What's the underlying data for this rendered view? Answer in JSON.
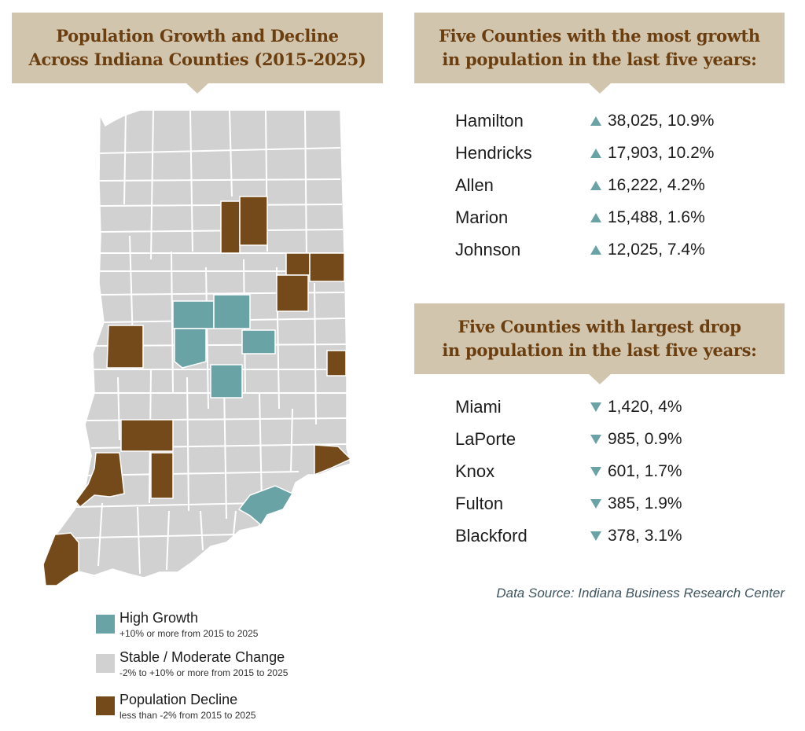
{
  "title": {
    "line1": "Population Growth and Decline",
    "line2": "Across Indiana Counties (2015-2025)"
  },
  "colors": {
    "high_growth": "#6aa3a6",
    "stable": "#d1d1d1",
    "decline": "#744a1a",
    "banner": "#d2c5ae",
    "banner_text": "#6b3e0f"
  },
  "growth_panel": {
    "line1": "Five Counties with the most growth",
    "line2": "in population in the last five years:",
    "rows": [
      {
        "county": "Hamilton",
        "value": "38,025, 10.9%"
      },
      {
        "county": "Hendricks",
        "value": "17,903, 10.2%"
      },
      {
        "county": "Allen",
        "value": "16,222, 4.2%"
      },
      {
        "county": "Marion",
        "value": "15,488, 1.6%"
      },
      {
        "county": "Johnson",
        "value": "12,025, 7.4%"
      }
    ]
  },
  "drop_panel": {
    "line1": "Five Counties with largest drop",
    "line2": "in population in the last five years:",
    "rows": [
      {
        "county": "Miami",
        "value": "1,420, 4%"
      },
      {
        "county": "LaPorte",
        "value": "985, 0.9%"
      },
      {
        "county": "Knox",
        "value": "601, 1.7%"
      },
      {
        "county": "Fulton",
        "value": "385, 1.9%"
      },
      {
        "county": "Blackford",
        "value": "378, 3.1%"
      }
    ]
  },
  "source": "Data Source: Indiana Business Research Center",
  "legend": {
    "high_growth": {
      "title": "High Growth",
      "sub": "+10% or more from 2015 to 2025"
    },
    "stable": {
      "title": "Stable / Moderate Change",
      "sub": "-2% to +10% or more from 2015 to 2025"
    },
    "decline": {
      "title": "Population Decline",
      "sub": "less than -2% from 2015 to 2025"
    }
  }
}
